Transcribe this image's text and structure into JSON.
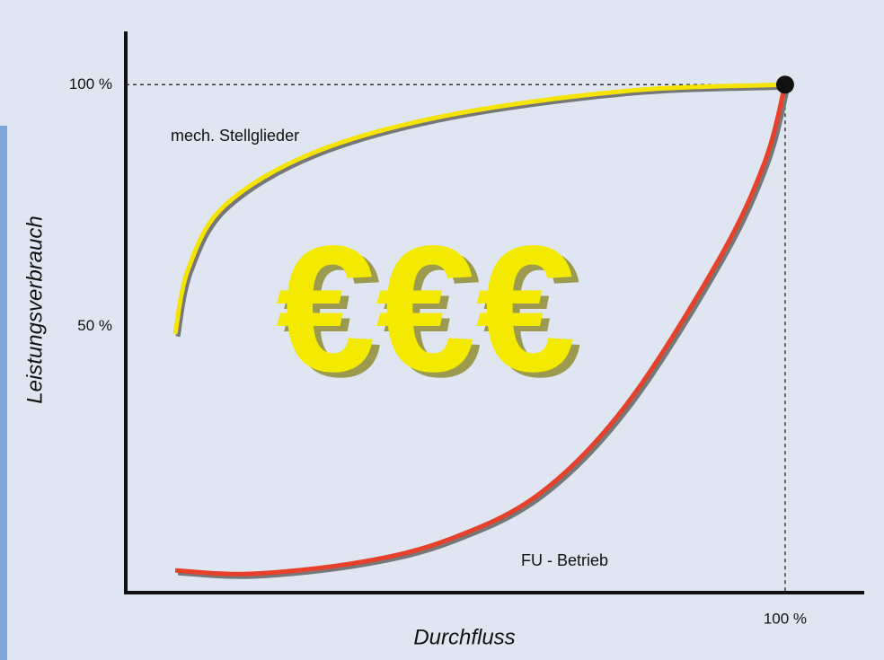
{
  "chart_data": {
    "type": "line",
    "x_label": "Durchfluss",
    "y_label": "Leistungsverbrauch",
    "xlim": [
      0,
      112
    ],
    "ylim": [
      -5,
      111
    ],
    "xticks": [
      {
        "value": 100,
        "label": "100 %"
      }
    ],
    "yticks": [
      {
        "value": 50,
        "label": "50 %"
      },
      {
        "value": 100,
        "label": "100 %"
      }
    ],
    "series": [
      {
        "name": "mech. Stellglieder",
        "color": "#f5e400",
        "x": [
          7.5,
          9.5,
          15,
          28.6,
          49,
          76,
          100
        ],
        "values": [
          48.5,
          62,
          75,
          86,
          93.7,
          98.7,
          100
        ]
      },
      {
        "name": "FU - Betrieb",
        "color": "#e8402a",
        "x": [
          7.5,
          19,
          35.5,
          49,
          62.8,
          76,
          90,
          96.9,
          100
        ],
        "values": [
          -0.4,
          -1.1,
          1.3,
          6,
          15.5,
          34,
          64,
          84,
          100
        ]
      }
    ],
    "annotation": "€€€"
  }
}
